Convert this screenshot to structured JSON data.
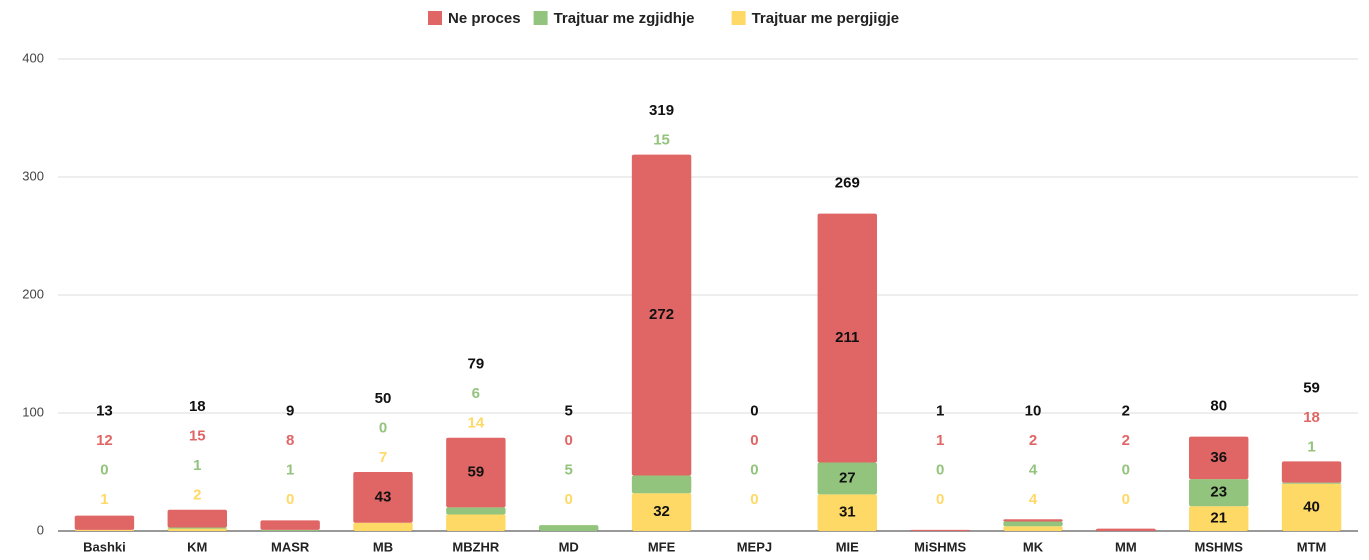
{
  "chart_data": {
    "type": "stacked-bar",
    "categories": [
      "Bashki",
      "KM",
      "MASR",
      "MB",
      "MBZHR",
      "MD",
      "MFE",
      "MEPJ",
      "MIE",
      "MiSHMS",
      "MK",
      "MM",
      "MSHMS",
      "MTM"
    ],
    "series": [
      {
        "name": "Ne proces",
        "color": "#e06666",
        "values": [
          12,
          15,
          8,
          43,
          59,
          0,
          272,
          0,
          211,
          1,
          2,
          2,
          36,
          18
        ]
      },
      {
        "name": "Trajtuar me zgjidhje",
        "color": "#93c47d",
        "values": [
          0,
          1,
          1,
          0,
          6,
          5,
          15,
          0,
          27,
          0,
          4,
          0,
          23,
          1
        ]
      },
      {
        "name": "Trajtuar me pergjigje",
        "color": "#ffd966",
        "values": [
          1,
          2,
          0,
          7,
          14,
          0,
          32,
          0,
          31,
          0,
          4,
          0,
          21,
          40
        ]
      }
    ],
    "totals": [
      13,
      18,
      9,
      50,
      79,
      5,
      319,
      0,
      269,
      1,
      10,
      2,
      80,
      59
    ],
    "ylim": [
      0,
      400
    ],
    "yticks": [
      0,
      100,
      200,
      300,
      400
    ],
    "grid": true,
    "legend": "top"
  }
}
